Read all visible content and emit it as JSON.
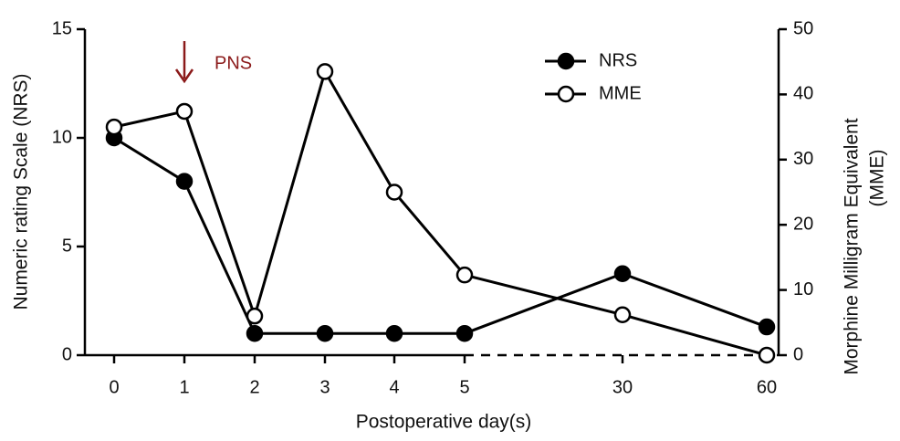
{
  "chart_data": {
    "type": "line",
    "xlabel": "Postoperative day(s)",
    "ylabel": "Numeric rating Scale (NRS)",
    "y2label": [
      "Morphine Milligram Equivalent",
      "(MME)"
    ],
    "categories": [
      "0",
      "1",
      "2",
      "3",
      "4",
      "5",
      "30",
      "60"
    ],
    "series": [
      {
        "name": "NRS",
        "color": "#000000",
        "marker_fill": "#000000",
        "values": [
          10,
          8,
          1,
          1,
          1,
          1,
          3.75,
          1.3
        ]
      },
      {
        "name": "MME",
        "color": "#000000",
        "marker_fill": "#ffffff",
        "axis": "y2",
        "values": [
          35,
          37.4,
          6,
          43.5,
          25,
          12.3,
          6.2,
          0
        ]
      }
    ],
    "ylim": [
      0,
      15
    ],
    "yticks": [
      0,
      5,
      10,
      15
    ],
    "y2lim": [
      0,
      50
    ],
    "y2ticks": [
      0,
      10,
      20,
      30,
      40,
      50
    ],
    "annotations": [
      {
        "text": "PNS",
        "category": 1,
        "color": "#8b1a1a"
      }
    ],
    "legend": "top-right"
  }
}
